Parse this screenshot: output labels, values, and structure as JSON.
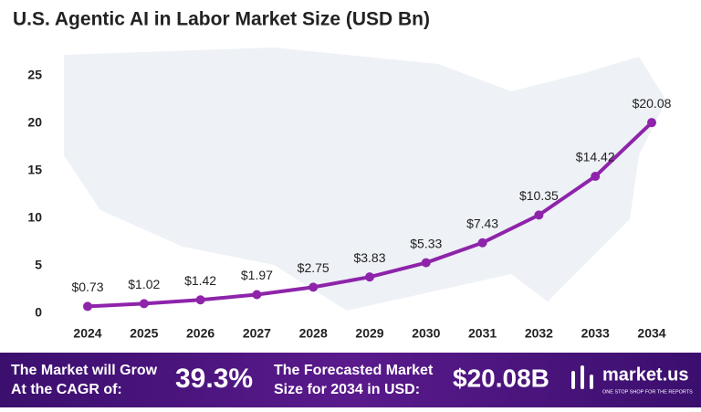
{
  "chart_data": {
    "type": "line",
    "title": "U.S. Agentic AI in Labor Market Size (USD Bn)",
    "categories": [
      "2024",
      "2025",
      "2026",
      "2027",
      "2028",
      "2029",
      "2030",
      "2031",
      "2032",
      "2033",
      "2034"
    ],
    "values": [
      0.73,
      1.02,
      1.42,
      1.97,
      2.75,
      3.83,
      5.33,
      7.43,
      10.35,
      14.42,
      20.08
    ],
    "value_labels": [
      "$0.73",
      "$1.02",
      "$1.42",
      "$1.97",
      "$2.75",
      "$3.83",
      "$5.33",
      "$7.43",
      "$10.35",
      "$14.42",
      "$20.08"
    ],
    "color": "#8e24aa",
    "ylim": [
      0,
      25
    ],
    "yticks": [
      0,
      5,
      10,
      15,
      20,
      25
    ],
    "grid": false
  },
  "footer": {
    "cagr_text": [
      "The Market will Grow",
      "At the CAGR of:"
    ],
    "cagr_value": "39.3%",
    "forecast_text": [
      "The Forecasted Market",
      "Size for 2034 in USD:"
    ],
    "forecast_value": "$20.08B",
    "brand": "market.us",
    "tagline": "ONE STOP SHOP FOR THE REPORTS"
  }
}
